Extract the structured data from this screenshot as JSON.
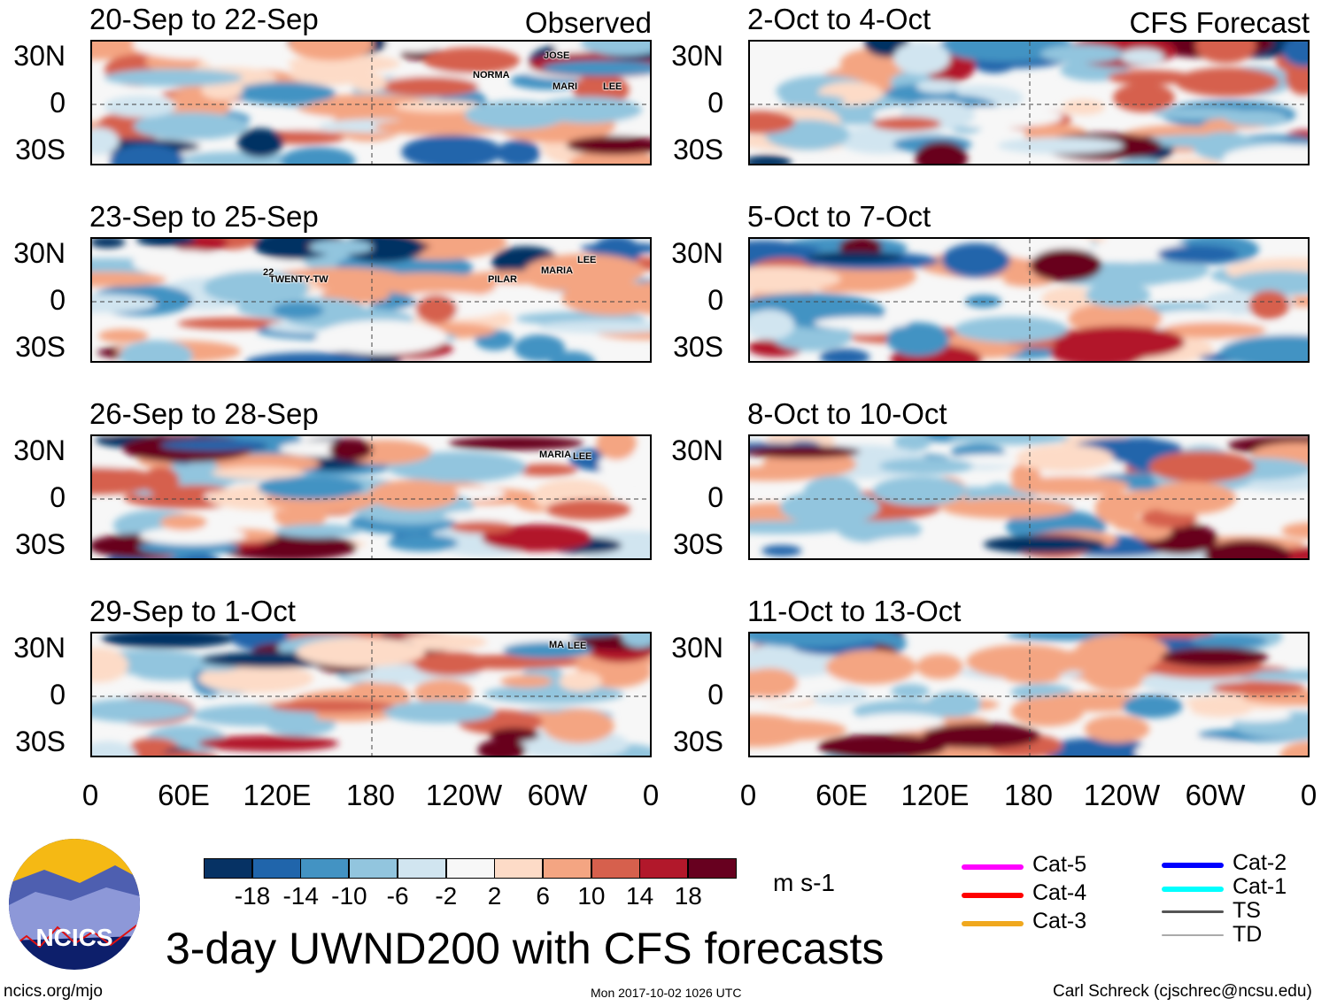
{
  "palette": [
    "#063264",
    "#2065ab",
    "#4393c3",
    "#92c5de",
    "#d1e5f0",
    "#f7f7f7",
    "#fddbc7",
    "#f4a582",
    "#d6604d",
    "#b2182b",
    "#67001f"
  ],
  "labels": {
    "observed": "Observed",
    "forecast": "CFS Forecast"
  },
  "observed_panels": [
    {
      "title": "20-Sep to 22-Sep",
      "storms": [
        "JOSE",
        "NORMA",
        "MARI",
        "LEE"
      ]
    },
    {
      "title": "23-Sep to 25-Sep",
      "storms": [
        "22",
        "TWENTY-TW",
        "PILAR",
        "MARIA",
        "LEE"
      ]
    },
    {
      "title": "26-Sep to 28-Sep",
      "storms": [
        "MARIA",
        "LEE"
      ]
    },
    {
      "title": "29-Sep to 1-Oct",
      "storms": [
        "MA",
        "LEE"
      ]
    }
  ],
  "forecast_panels": [
    {
      "title": "2-Oct to 4-Oct"
    },
    {
      "title": "5-Oct to 7-Oct"
    },
    {
      "title": "8-Oct to 10-Oct"
    },
    {
      "title": "11-Oct to 13-Oct"
    }
  ],
  "y_ticks": [
    "30N",
    "0",
    "30S"
  ],
  "x_ticks": [
    "0",
    "60E",
    "120E",
    "180",
    "120W",
    "60W",
    "0"
  ],
  "colorbar": {
    "ticks": [
      "-18",
      "-14",
      "-10",
      "-6",
      "-2",
      "2",
      "6",
      "10",
      "14",
      "18"
    ],
    "units": "m s-1"
  },
  "legend": [
    {
      "label": "Cat-5",
      "color": "#ff00ff"
    },
    {
      "label": "Cat-4",
      "color": "#ff0000"
    },
    {
      "label": "Cat-3",
      "color": "#f0a81e"
    },
    {
      "label": "Cat-2",
      "color": "#0000ff"
    },
    {
      "label": "Cat-1",
      "color": "#00ffff"
    },
    {
      "label": "TS",
      "color": "#555555"
    },
    {
      "label": "TD",
      "color": "#aaaaaa"
    }
  ],
  "logo_text": "NCICS",
  "title": "3-day UWND200 with CFS forecasts",
  "footer": {
    "left": "ncics.org/mjo",
    "center": "Mon 2017-10-02 1026 UTC",
    "right": "Carl Schreck (cjschrec@ncsu.edu)"
  }
}
